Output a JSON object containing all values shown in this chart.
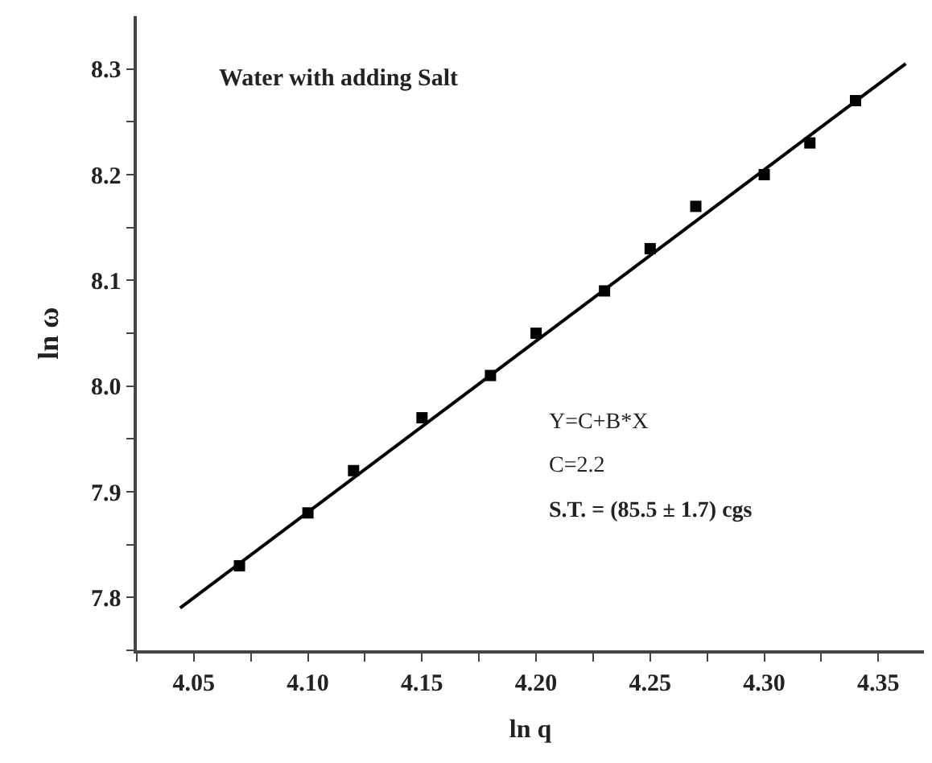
{
  "chart_data": {
    "type": "scatter",
    "title": "Water with adding Salt",
    "xlabel": "ln q",
    "ylabel": "ln ω",
    "xlim": [
      4.025,
      4.37
    ],
    "ylim": [
      7.75,
      8.35
    ],
    "xticks": [
      {
        "value": 4.025,
        "label": null
      },
      4.05,
      {
        "value": 4.075,
        "label": null
      },
      "4.10",
      {
        "value": 4.125,
        "label": null
      },
      4.15,
      {
        "value": 4.175,
        "label": null
      },
      "4.20",
      {
        "value": 4.225,
        "label": null
      },
      4.25,
      {
        "value": 4.275,
        "label": null
      },
      "4.30",
      {
        "value": 4.325,
        "label": null
      },
      4.35
    ],
    "yticks": [
      {
        "value": 7.75,
        "label": null
      },
      7.8,
      {
        "value": 7.85,
        "label": null
      },
      7.9,
      {
        "value": 7.95,
        "label": null
      },
      "8.0",
      {
        "value": 8.05,
        "label": null
      },
      8.1,
      {
        "value": 8.15,
        "label": null
      },
      8.2,
      {
        "value": 8.25,
        "label": null
      },
      8.3
    ],
    "marker": "square",
    "series": [
      {
        "color": "#000000",
        "x": [
          4.07,
          4.1,
          4.12,
          4.15,
          4.18,
          4.2,
          4.23,
          4.25,
          4.27,
          4.3,
          4.32,
          4.34
        ],
        "values": [
          7.83,
          7.88,
          7.92,
          7.97,
          8.01,
          8.05,
          8.09,
          8.13,
          8.17,
          8.2,
          8.23,
          8.27
        ]
      },
      {
        "type": "line",
        "marker": "none",
        "color": "#000000",
        "x": [
          4.044,
          4.362
        ],
        "values": [
          7.79,
          8.305
        ]
      }
    ],
    "annotations": [
      "Y=C+B*X",
      "C=2.2",
      "S.T. = (85.5 ± 1.7) cgs"
    ]
  }
}
